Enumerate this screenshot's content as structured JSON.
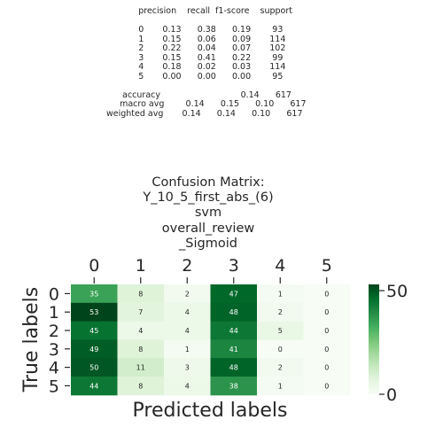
{
  "report": {
    "header": [
      "precision",
      "recall",
      "f1-score",
      "support"
    ],
    "rows": [
      {
        "label": "0",
        "precision": "0.13",
        "recall": "0.38",
        "f1": "0.19",
        "support": "93"
      },
      {
        "label": "1",
        "precision": "0.15",
        "recall": "0.06",
        "f1": "0.09",
        "support": "114"
      },
      {
        "label": "2",
        "precision": "0.22",
        "recall": "0.04",
        "f1": "0.07",
        "support": "102"
      },
      {
        "label": "3",
        "precision": "0.15",
        "recall": "0.41",
        "f1": "0.22",
        "support": "99"
      },
      {
        "label": "4",
        "precision": "0.18",
        "recall": "0.02",
        "f1": "0.03",
        "support": "114"
      },
      {
        "label": "5",
        "precision": "0.00",
        "recall": "0.00",
        "f1": "0.00",
        "support": "95"
      }
    ],
    "accuracy": {
      "label": "accuracy",
      "f1": "0.14",
      "support": "617"
    },
    "macro_avg": {
      "label": "macro avg",
      "precision": "0.14",
      "recall": "0.15",
      "f1": "0.10",
      "support": "617"
    },
    "weighted_avg": {
      "label": "weighted avg",
      "precision": "0.14",
      "recall": "0.14",
      "f1": "0.10",
      "support": "617"
    }
  },
  "title_lines": [
    "Confusion Matrix:",
    "Y_10_5_first_abs_(6)",
    "svm",
    "overall_review",
    "_Sigmoid"
  ],
  "chart_data": {
    "type": "heatmap",
    "title": "Confusion Matrix:\nY_10_5_first_abs_(6)\nsvm\noverall_review\n_Sigmoid",
    "xlabel": "Predicted labels",
    "ylabel": "True labels",
    "x_categories": [
      "0",
      "1",
      "2",
      "3",
      "4",
      "5"
    ],
    "y_categories": [
      "0",
      "1",
      "2",
      "3",
      "4",
      "5"
    ],
    "values": [
      [
        35,
        8,
        2,
        47,
        1,
        0
      ],
      [
        53,
        7,
        4,
        48,
        2,
        0
      ],
      [
        45,
        4,
        4,
        44,
        5,
        0
      ],
      [
        49,
        8,
        1,
        41,
        0,
        0
      ],
      [
        50,
        11,
        3,
        48,
        2,
        0
      ],
      [
        44,
        8,
        4,
        38,
        1,
        0
      ]
    ],
    "colormap": "Greens",
    "color_low": "#f7fcf5",
    "color_high": "#00441b",
    "vmin": 0,
    "vmax": 53,
    "colorbar_ticks": [
      0,
      50
    ],
    "x_axis_position": "top"
  }
}
